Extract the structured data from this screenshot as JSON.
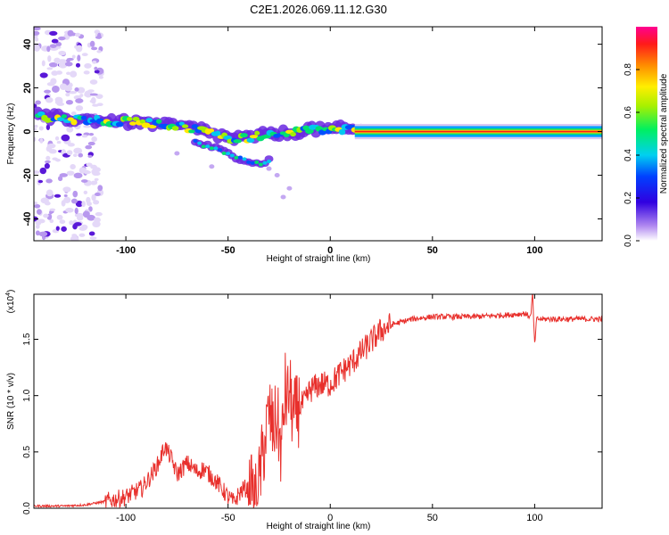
{
  "title": "C2E1.2026.069.11.12.G30",
  "chart_data": [
    {
      "type": "heatmap",
      "panel": "top",
      "xlabel": "Height of straight line (km)",
      "ylabel": "Frequency (Hz)",
      "xlim": [
        -145,
        133
      ],
      "ylim": [
        -50,
        48
      ],
      "xticks": [
        -100,
        -50,
        0,
        50,
        100
      ],
      "yticks": [
        -40,
        -20,
        0,
        20,
        40
      ],
      "colorbar": {
        "label": "Normalized spectral amplitude",
        "range": [
          0,
          1
        ],
        "ticks": [
          0.0,
          0.2,
          0.4,
          0.6,
          0.8
        ],
        "tick_labels": [
          "0.0",
          "0.2",
          "0.4",
          "0.6",
          "0.8"
        ]
      },
      "ridge": [
        {
          "x": -143,
          "f": 7
        },
        {
          "x": -130,
          "f": 6
        },
        {
          "x": -120,
          "f": 5.5
        },
        {
          "x": -110,
          "f": 5
        },
        {
          "x": -100,
          "f": 4.5
        },
        {
          "x": -90,
          "f": 4
        },
        {
          "x": -80,
          "f": 3
        },
        {
          "x": -70,
          "f": 2
        },
        {
          "x": -60,
          "f": 0
        },
        {
          "x": -50,
          "f": -3
        },
        {
          "x": -40,
          "f": -3
        },
        {
          "x": -30,
          "f": -1
        },
        {
          "x": -20,
          "f": -1
        },
        {
          "x": -10,
          "f": 1
        },
        {
          "x": 0,
          "f": 1
        },
        {
          "x": 10,
          "f": 1
        },
        {
          "x": 20,
          "f": 0
        },
        {
          "x": 133,
          "f": 0
        }
      ],
      "branch": [
        {
          "x": -65,
          "f": -5
        },
        {
          "x": -55,
          "f": -8
        },
        {
          "x": -45,
          "f": -12
        },
        {
          "x": -35,
          "f": -15
        },
        {
          "x": -30,
          "f": -13
        }
      ]
    },
    {
      "type": "line",
      "panel": "bottom",
      "xlabel": "Height of straight line (km)",
      "ylabel": "SNR (10 * v/v)",
      "scale_label": "(x10",
      "scale_exponent": "4",
      "scale_suffix": ")",
      "xlim": [
        -145,
        133
      ],
      "ylim": [
        0,
        1.9
      ],
      "xticks": [
        -100,
        -50,
        0,
        50,
        100
      ],
      "yticks": [
        0.0,
        0.5,
        1.0,
        1.5
      ],
      "ytick_labels": [
        "0.0",
        "0.5",
        "1.0",
        "1.5"
      ],
      "color": "#e8302c",
      "series": [
        {
          "name": "SNR",
          "x": [
            -145,
            -130,
            -120,
            -110,
            -100,
            -92,
            -88,
            -84,
            -81,
            -78,
            -75,
            -70,
            -65,
            -62,
            -58,
            -55,
            -50,
            -47,
            -45,
            -42,
            -39,
            -36,
            -34,
            -32,
            -30,
            -28,
            -26,
            -24,
            -22,
            -21,
            -20,
            -18,
            -15,
            -12,
            -10,
            -5,
            0,
            5,
            10,
            15,
            20,
            25,
            30,
            40,
            50,
            60,
            70,
            80,
            90,
            95,
            98,
            99,
            100,
            101,
            105,
            110,
            120,
            133
          ],
          "y": [
            0.02,
            0.02,
            0.03,
            0.06,
            0.1,
            0.18,
            0.28,
            0.4,
            0.55,
            0.45,
            0.3,
            0.4,
            0.32,
            0.35,
            0.28,
            0.22,
            0.1,
            0.05,
            0.12,
            0.18,
            0.15,
            0.06,
            0.35,
            0.6,
            0.85,
            0.7,
            0.8,
            0.5,
            1.05,
            0.95,
            1.05,
            0.8,
            0.9,
            0.95,
            1.05,
            1.1,
            1.1,
            1.2,
            1.28,
            1.38,
            1.48,
            1.58,
            1.63,
            1.68,
            1.7,
            1.7,
            1.7,
            1.71,
            1.72,
            1.73,
            1.7,
            1.9,
            1.45,
            1.68,
            1.68,
            1.68,
            1.68,
            1.68
          ]
        }
      ]
    }
  ]
}
